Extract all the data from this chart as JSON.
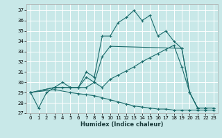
{
  "xlabel": "Humidex (Indice chaleur)",
  "bg_color": "#c8e8e8",
  "line_color": "#1a6b6b",
  "grid_color": "#ffffff",
  "xlim": [
    -0.5,
    23.5
  ],
  "ylim": [
    27,
    37.6
  ],
  "yticks": [
    27,
    28,
    29,
    30,
    31,
    32,
    33,
    34,
    35,
    36,
    37
  ],
  "xticks": [
    0,
    1,
    2,
    3,
    4,
    5,
    6,
    7,
    8,
    9,
    10,
    11,
    12,
    13,
    14,
    15,
    16,
    17,
    18,
    19,
    20,
    21,
    22,
    23
  ],
  "lines": [
    {
      "x": [
        0,
        1,
        2,
        3,
        4,
        5,
        6,
        7,
        8,
        9,
        10,
        11,
        12,
        13,
        14,
        15,
        16,
        17,
        18,
        19,
        20,
        21,
        22
      ],
      "y": [
        29,
        27.5,
        29,
        29.5,
        30,
        29.5,
        29.5,
        31,
        30.5,
        34.5,
        34.5,
        35.8,
        36.3,
        37,
        36.0,
        36.5,
        34.5,
        35.0,
        34.0,
        33.3,
        29.0,
        27.5,
        27.5
      ]
    },
    {
      "x": [
        0,
        3,
        4,
        5,
        6,
        7,
        8,
        9,
        10,
        19,
        20,
        21,
        22,
        23
      ],
      "y": [
        29,
        29.5,
        29.5,
        29.5,
        29.5,
        30.5,
        30.0,
        32.5,
        33.5,
        33.3,
        29.0,
        27.5,
        27.5,
        27.5
      ]
    },
    {
      "x": [
        0,
        3,
        5,
        6,
        7,
        8,
        9,
        10,
        11,
        12,
        13,
        14,
        15,
        16,
        17,
        18,
        19,
        20,
        21,
        22,
        23
      ],
      "y": [
        29,
        29.5,
        29.5,
        29.5,
        29.5,
        30.0,
        29.5,
        30.3,
        30.7,
        31.1,
        31.5,
        32.0,
        32.4,
        32.8,
        33.2,
        33.6,
        31.5,
        29.0,
        27.5,
        27.5,
        27.5
      ]
    },
    {
      "x": [
        0,
        3,
        5,
        6,
        7,
        8,
        9,
        10,
        11,
        12,
        13,
        14,
        15,
        16,
        17,
        18,
        19,
        20,
        21,
        22,
        23
      ],
      "y": [
        29,
        29.3,
        29.0,
        28.9,
        28.8,
        28.7,
        28.5,
        28.3,
        28.1,
        27.9,
        27.7,
        27.6,
        27.5,
        27.4,
        27.4,
        27.3,
        27.3,
        27.3,
        27.3,
        27.3,
        27.3
      ]
    }
  ]
}
